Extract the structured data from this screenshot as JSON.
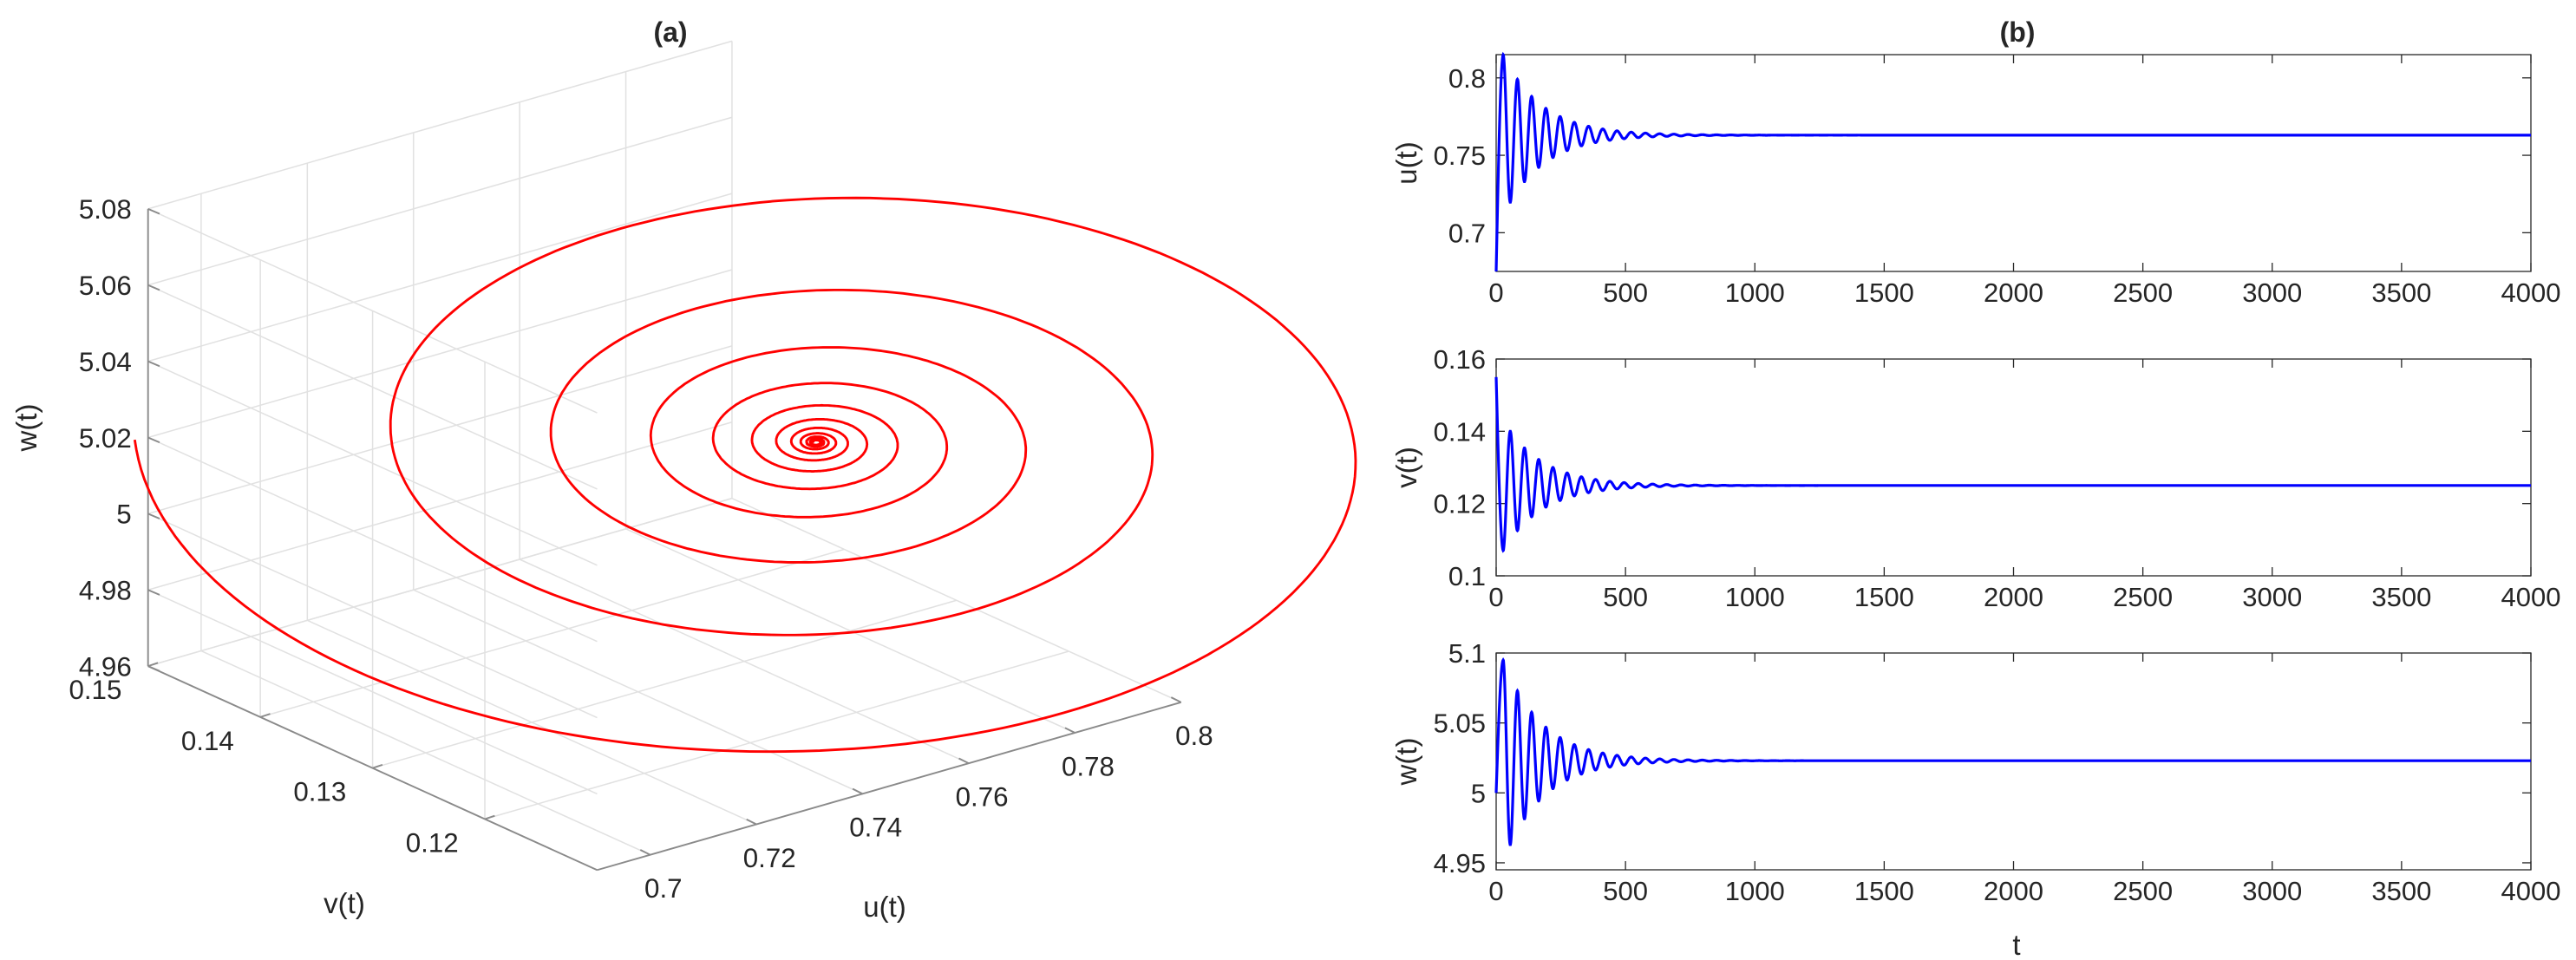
{
  "figure": {
    "panel_a_title": "(a)",
    "panel_b_title": "(b)"
  },
  "chart_data": [
    {
      "type": "line3d",
      "title": "(a)",
      "xlabel": "u(t)",
      "ylabel": "v(t)",
      "zlabel": "w(t)",
      "xlim": [
        0.69,
        0.8
      ],
      "ylim": [
        0.11,
        0.15
      ],
      "zlim": [
        4.96,
        5.08
      ],
      "xticks": [
        "0.7",
        "0.72",
        "0.74",
        "0.76",
        "0.78",
        "0.8"
      ],
      "yticks": [
        "0.12",
        "0.13",
        "0.14",
        "0.15"
      ],
      "zticks": [
        "4.96",
        "4.98",
        "5",
        "5.02",
        "5.04",
        "5.06",
        "5.08"
      ],
      "grid": true,
      "series": [
        {
          "name": "trajectory",
          "color": "#ff0000",
          "description": "damped spiral trajectory converging to equilibrium",
          "start": {
            "u": 0.69,
            "v": 0.15,
            "w": 5.02
          },
          "equilibrium": {
            "u": 0.763,
            "v": 0.125,
            "w": 5.023
          }
        }
      ]
    },
    {
      "type": "line",
      "title": "(b)",
      "ylabel": "u(t)",
      "xlabel": "",
      "xlim": [
        0,
        4000
      ],
      "ylim": [
        0.675,
        0.815
      ],
      "xticks": [
        "0",
        "500",
        "1000",
        "1500",
        "2000",
        "2500",
        "3000",
        "3500",
        "4000"
      ],
      "yticks": [
        "0.7",
        "0.75",
        "0.8"
      ],
      "series": [
        {
          "name": "u(t)",
          "color": "#0000ff",
          "x0": 0,
          "y0": 0.675,
          "peak1": 0.815,
          "equilibrium": 0.763,
          "period": 55,
          "settle_t": 1000
        }
      ]
    },
    {
      "type": "line",
      "title": "",
      "ylabel": "v(t)",
      "xlabel": "",
      "xlim": [
        0,
        4000
      ],
      "ylim": [
        0.1,
        0.16
      ],
      "xticks": [
        "0",
        "500",
        "1000",
        "1500",
        "2000",
        "2500",
        "3000",
        "3500",
        "4000"
      ],
      "yticks": [
        "0.1",
        "0.12",
        "0.14",
        "0.16"
      ],
      "series": [
        {
          "name": "v(t)",
          "color": "#0000ff",
          "x0": 0,
          "y0": 0.155,
          "trough1": 0.107,
          "equilibrium": 0.125,
          "period": 55,
          "settle_t": 1100
        }
      ]
    },
    {
      "type": "line",
      "title": "",
      "ylabel": "w(t)",
      "xlabel": "t",
      "xlim": [
        0,
        4000
      ],
      "ylim": [
        4.945,
        5.1
      ],
      "xticks": [
        "0",
        "500",
        "1000",
        "1500",
        "2000",
        "2500",
        "3000",
        "3500",
        "4000"
      ],
      "yticks": [
        "4.95",
        "5",
        "5.05",
        "5.1"
      ],
      "series": [
        {
          "name": "w(t)",
          "color": "#0000ff",
          "x0": 0,
          "y0": 5.0,
          "peak1": 5.095,
          "equilibrium": 5.023,
          "period": 55,
          "settle_t": 1350
        }
      ]
    }
  ]
}
